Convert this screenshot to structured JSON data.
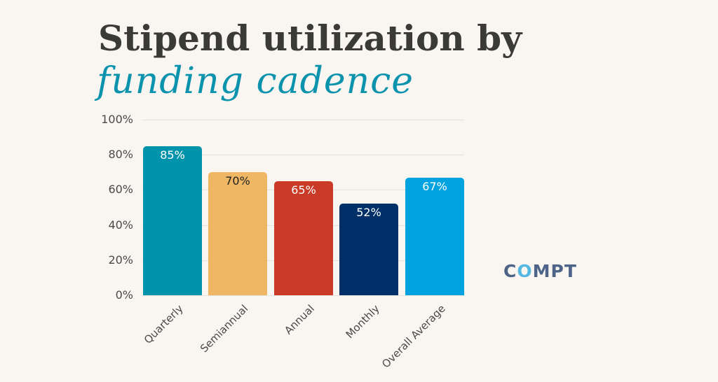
{
  "title": {
    "line1": "Stipend utilization by",
    "line2": "funding cadence"
  },
  "logo": {
    "before": "C",
    "o": "O",
    "after": "MPT"
  },
  "chart_data": {
    "type": "bar",
    "title": "Stipend utilization by funding cadence",
    "xlabel": "",
    "ylabel": "",
    "categories": [
      "Quarterly",
      "Semiannual",
      "Annual",
      "Monthly",
      "Overall Average"
    ],
    "values": [
      85,
      70,
      65,
      52,
      67
    ],
    "value_labels": [
      "85%",
      "70%",
      "65%",
      "52%",
      "67%"
    ],
    "colors": [
      "#0093ac",
      "#efb764",
      "#ca3b27",
      "#003067",
      "#00a2e0"
    ],
    "label_colors": [
      "#ffffff",
      "#222222",
      "#ffffff",
      "#ffffff",
      "#ffffff"
    ],
    "yticks": [
      "0%",
      "20%",
      "40%",
      "60%",
      "80%",
      "100%"
    ],
    "ylim": [
      0,
      100
    ],
    "grid": true,
    "legend": false
  }
}
